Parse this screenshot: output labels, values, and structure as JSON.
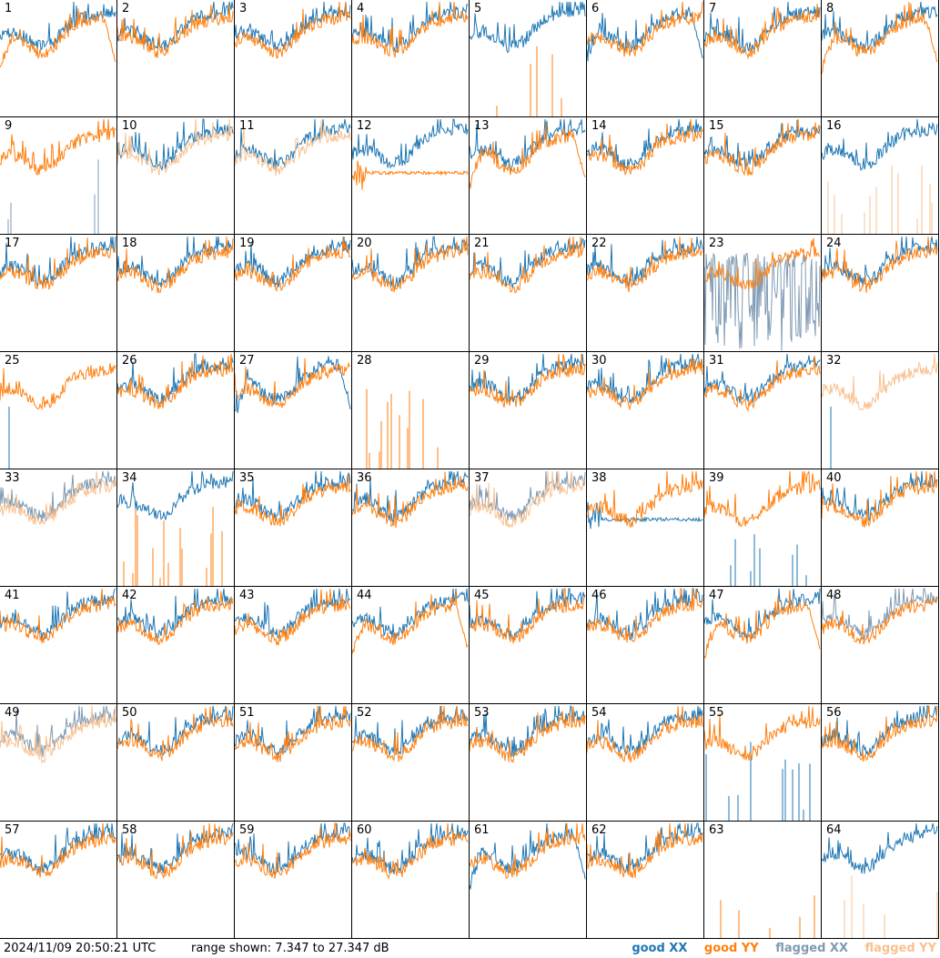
{
  "footer": {
    "timestamp": "2024/11/09 20:50:21 UTC",
    "range_text": "range shown: 7.347 to 27.347 dB"
  },
  "legend": [
    {
      "label": "good XX",
      "color": "#1f77b4"
    },
    {
      "label": "good YY",
      "color": "#ff7f0e"
    },
    {
      "label": "flagged XX",
      "color": "#7f9ab3"
    },
    {
      "label": "flagged YY",
      "color": "#f9c08f"
    }
  ],
  "chart_data": {
    "type": "line",
    "xlabel": "",
    "ylabel": "",
    "ylim": [
      7.347,
      27.347
    ],
    "grid": false,
    "layout": "8x8 small multiples",
    "series_types": [
      "XX",
      "YY"
    ],
    "panels": [
      {
        "id": 1,
        "xx": "good",
        "yy": "good",
        "xx_shape": "normal",
        "yy_shape": "dip_late"
      },
      {
        "id": 2,
        "xx": "good",
        "yy": "good",
        "xx_shape": "normal",
        "yy_shape": "normal"
      },
      {
        "id": 3,
        "xx": "good",
        "yy": "good",
        "xx_shape": "normal",
        "yy_shape": "normal"
      },
      {
        "id": 4,
        "xx": "good",
        "yy": "good",
        "xx_shape": "normal",
        "yy_shape": "normal"
      },
      {
        "id": 5,
        "xx": "good",
        "yy": "good",
        "xx_shape": "normal",
        "yy_shape": "spikes"
      },
      {
        "id": 6,
        "xx": "good",
        "yy": "good",
        "xx_shape": "dip_late",
        "yy_shape": "normal"
      },
      {
        "id": 7,
        "xx": "good",
        "yy": "good",
        "xx_shape": "normal",
        "yy_shape": "normal"
      },
      {
        "id": 8,
        "xx": "good",
        "yy": "good",
        "xx_shape": "normal",
        "yy_shape": "dip_late"
      },
      {
        "id": 9,
        "xx": "flagged",
        "yy": "good",
        "xx_shape": "spikes",
        "yy_shape": "normal"
      },
      {
        "id": 10,
        "xx": "good",
        "yy": "flagged",
        "xx_shape": "normal",
        "yy_shape": "normal"
      },
      {
        "id": 11,
        "xx": "good",
        "yy": "flagged",
        "xx_shape": "normal",
        "yy_shape": "normal"
      },
      {
        "id": 12,
        "xx": "good",
        "yy": "good",
        "xx_shape": "normal",
        "yy_shape": "flat"
      },
      {
        "id": 13,
        "xx": "good",
        "yy": "good",
        "xx_shape": "normal",
        "yy_shape": "dip_late"
      },
      {
        "id": 14,
        "xx": "good",
        "yy": "good",
        "xx_shape": "normal",
        "yy_shape": "normal"
      },
      {
        "id": 15,
        "xx": "good",
        "yy": "good",
        "xx_shape": "normal",
        "yy_shape": "normal"
      },
      {
        "id": 16,
        "xx": "good",
        "yy": "flagged",
        "xx_shape": "normal",
        "yy_shape": "spikes"
      },
      {
        "id": 17,
        "xx": "good",
        "yy": "good",
        "xx_shape": "normal",
        "yy_shape": "normal"
      },
      {
        "id": 18,
        "xx": "good",
        "yy": "good",
        "xx_shape": "normal",
        "yy_shape": "normal"
      },
      {
        "id": 19,
        "xx": "good",
        "yy": "good",
        "xx_shape": "normal",
        "yy_shape": "normal"
      },
      {
        "id": 20,
        "xx": "good",
        "yy": "good",
        "xx_shape": "normal",
        "yy_shape": "normal"
      },
      {
        "id": 21,
        "xx": "good",
        "yy": "good",
        "xx_shape": "normal",
        "yy_shape": "normal"
      },
      {
        "id": 22,
        "xx": "good",
        "yy": "good",
        "xx_shape": "normal",
        "yy_shape": "normal"
      },
      {
        "id": 23,
        "xx": "flagged",
        "yy": "good",
        "xx_shape": "noisy",
        "yy_shape": "normal"
      },
      {
        "id": 24,
        "xx": "good",
        "yy": "good",
        "xx_shape": "normal",
        "yy_shape": "normal"
      },
      {
        "id": 25,
        "xx": "good",
        "yy": "good",
        "xx_shape": "spike_one",
        "yy_shape": "normal"
      },
      {
        "id": 26,
        "xx": "good",
        "yy": "good",
        "xx_shape": "normal",
        "yy_shape": "normal"
      },
      {
        "id": 27,
        "xx": "good",
        "yy": "good",
        "xx_shape": "dip_late",
        "yy_shape": "normal"
      },
      {
        "id": 28,
        "xx": "good",
        "yy": "good",
        "xx_shape": "none",
        "yy_shape": "spikes"
      },
      {
        "id": 29,
        "xx": "good",
        "yy": "good",
        "xx_shape": "normal",
        "yy_shape": "normal"
      },
      {
        "id": 30,
        "xx": "good",
        "yy": "good",
        "xx_shape": "normal",
        "yy_shape": "normal"
      },
      {
        "id": 31,
        "xx": "good",
        "yy": "good",
        "xx_shape": "normal",
        "yy_shape": "normal"
      },
      {
        "id": 32,
        "xx": "good",
        "yy": "flagged",
        "xx_shape": "spike_one",
        "yy_shape": "normal"
      },
      {
        "id": 33,
        "xx": "flagged",
        "yy": "flagged",
        "xx_shape": "normal",
        "yy_shape": "normal"
      },
      {
        "id": 34,
        "xx": "good",
        "yy": "good",
        "xx_shape": "normal",
        "yy_shape": "spikes"
      },
      {
        "id": 35,
        "xx": "good",
        "yy": "good",
        "xx_shape": "normal",
        "yy_shape": "normal"
      },
      {
        "id": 36,
        "xx": "good",
        "yy": "good",
        "xx_shape": "normal",
        "yy_shape": "normal"
      },
      {
        "id": 37,
        "xx": "flagged",
        "yy": "flagged",
        "xx_shape": "normal",
        "yy_shape": "normal"
      },
      {
        "id": 38,
        "xx": "good",
        "yy": "good",
        "xx_shape": "flat",
        "yy_shape": "normal"
      },
      {
        "id": 39,
        "xx": "good",
        "yy": "good",
        "xx_shape": "spikes",
        "yy_shape": "normal"
      },
      {
        "id": 40,
        "xx": "good",
        "yy": "good",
        "xx_shape": "normal",
        "yy_shape": "normal"
      },
      {
        "id": 41,
        "xx": "good",
        "yy": "good",
        "xx_shape": "normal",
        "yy_shape": "normal"
      },
      {
        "id": 42,
        "xx": "good",
        "yy": "good",
        "xx_shape": "normal",
        "yy_shape": "normal"
      },
      {
        "id": 43,
        "xx": "good",
        "yy": "good",
        "xx_shape": "normal",
        "yy_shape": "normal"
      },
      {
        "id": 44,
        "xx": "good",
        "yy": "good",
        "xx_shape": "normal",
        "yy_shape": "dip_late"
      },
      {
        "id": 45,
        "xx": "good",
        "yy": "good",
        "xx_shape": "normal",
        "yy_shape": "normal"
      },
      {
        "id": 46,
        "xx": "good",
        "yy": "good",
        "xx_shape": "normal",
        "yy_shape": "normal"
      },
      {
        "id": 47,
        "xx": "good",
        "yy": "good",
        "xx_shape": "normal",
        "yy_shape": "dip_late"
      },
      {
        "id": 48,
        "xx": "flagged",
        "yy": "good",
        "xx_shape": "normal",
        "yy_shape": "normal"
      },
      {
        "id": 49,
        "xx": "flagged",
        "yy": "flagged",
        "xx_shape": "normal",
        "yy_shape": "normal"
      },
      {
        "id": 50,
        "xx": "good",
        "yy": "good",
        "xx_shape": "normal",
        "yy_shape": "normal"
      },
      {
        "id": 51,
        "xx": "good",
        "yy": "good",
        "xx_shape": "normal",
        "yy_shape": "normal"
      },
      {
        "id": 52,
        "xx": "good",
        "yy": "good",
        "xx_shape": "normal",
        "yy_shape": "normal"
      },
      {
        "id": 53,
        "xx": "good",
        "yy": "good",
        "xx_shape": "normal",
        "yy_shape": "normal"
      },
      {
        "id": 54,
        "xx": "good",
        "yy": "good",
        "xx_shape": "normal",
        "yy_shape": "normal"
      },
      {
        "id": 55,
        "xx": "good",
        "yy": "good",
        "xx_shape": "spikes",
        "yy_shape": "normal"
      },
      {
        "id": 56,
        "xx": "good",
        "yy": "good",
        "xx_shape": "normal",
        "yy_shape": "normal"
      },
      {
        "id": 57,
        "xx": "good",
        "yy": "good",
        "xx_shape": "normal",
        "yy_shape": "normal"
      },
      {
        "id": 58,
        "xx": "good",
        "yy": "good",
        "xx_shape": "normal",
        "yy_shape": "normal"
      },
      {
        "id": 59,
        "xx": "good",
        "yy": "good",
        "xx_shape": "normal",
        "yy_shape": "normal"
      },
      {
        "id": 60,
        "xx": "good",
        "yy": "good",
        "xx_shape": "normal",
        "yy_shape": "normal"
      },
      {
        "id": 61,
        "xx": "good",
        "yy": "good",
        "xx_shape": "dip_late",
        "yy_shape": "normal"
      },
      {
        "id": 62,
        "xx": "good",
        "yy": "good",
        "xx_shape": "normal",
        "yy_shape": "normal"
      },
      {
        "id": 63,
        "xx": "good",
        "yy": "good",
        "xx_shape": "none",
        "yy_shape": "spikes"
      },
      {
        "id": 64,
        "xx": "good",
        "yy": "flagged",
        "xx_shape": "normal",
        "yy_shape": "spikes"
      }
    ]
  }
}
